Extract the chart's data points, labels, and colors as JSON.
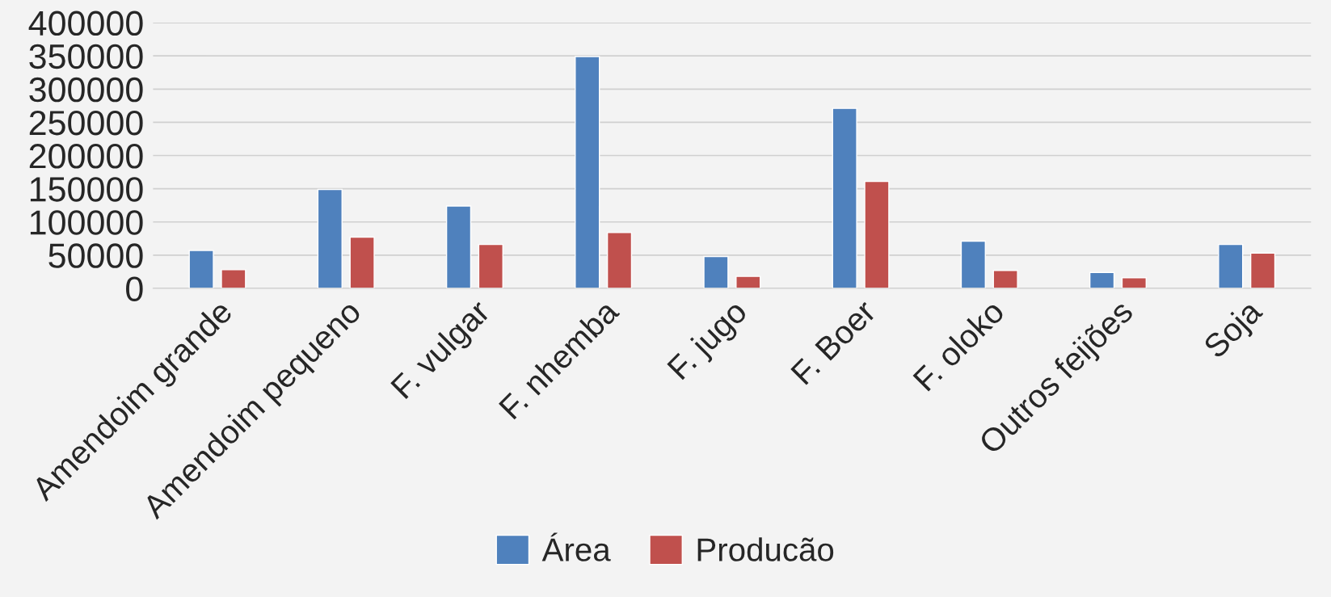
{
  "chart_data": {
    "type": "bar",
    "categories": [
      "Amendoim grande",
      "Amendoim pequeno",
      "F. vulgar",
      "F. nhemba",
      "F. jugo",
      "F. Boer",
      "F. oloko",
      "Outros feijões",
      "Soja"
    ],
    "series": [
      {
        "name": "Área",
        "color": "#4f81bd",
        "values": [
          57000,
          149000,
          124000,
          349000,
          48000,
          271000,
          71000,
          24000,
          66000
        ]
      },
      {
        "name": "Producão",
        "color": "#c0504d",
        "values": [
          28000,
          77000,
          66000,
          84000,
          18000,
          161000,
          27000,
          16000,
          53000
        ]
      }
    ],
    "ylim": [
      0,
      400000
    ],
    "yticks": [
      0,
      50000,
      100000,
      150000,
      200000,
      250000,
      300000,
      350000,
      400000
    ],
    "grid": "y",
    "legend": "bottom"
  }
}
